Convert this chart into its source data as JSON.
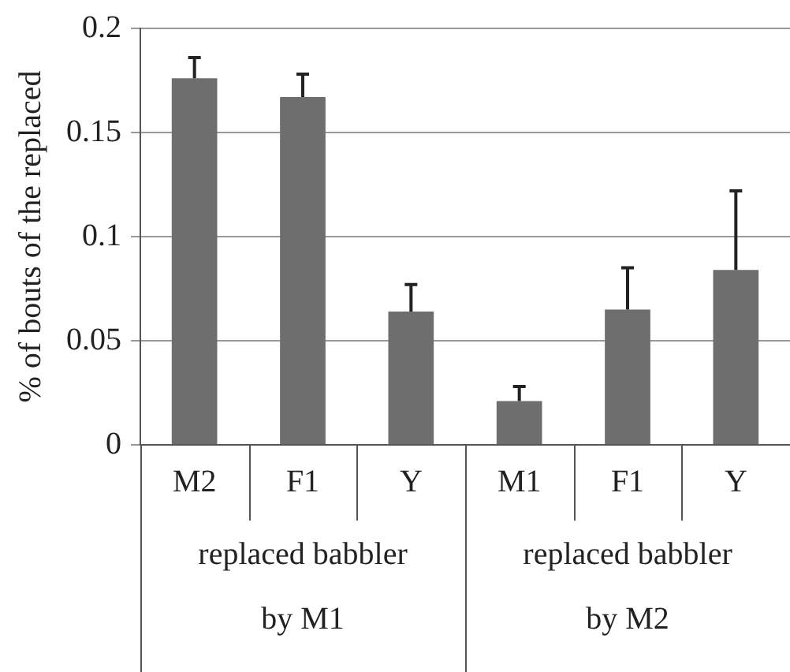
{
  "chart_data": {
    "type": "bar",
    "ylabel": "% of bouts of the replaced",
    "categories": [
      "M2",
      "F1",
      "Y",
      "M1",
      "F1",
      "Y"
    ],
    "values": [
      0.176,
      0.167,
      0.064,
      0.021,
      0.065,
      0.084
    ],
    "errors": [
      [
        0.176,
        0.186
      ],
      [
        0.167,
        0.178
      ],
      [
        0.064,
        0.077
      ],
      [
        0.021,
        0.028
      ],
      [
        0.065,
        0.085
      ],
      [
        0.084,
        0.122
      ]
    ],
    "color": "#6e6e6e",
    "ylim": [
      0,
      0.2
    ],
    "yticks": [
      0,
      0.05,
      0.1,
      0.15,
      0.2
    ],
    "grid": "y",
    "annotations": [
      "replaced babbler\nby M1",
      "replaced babbler\nby M2"
    ]
  }
}
